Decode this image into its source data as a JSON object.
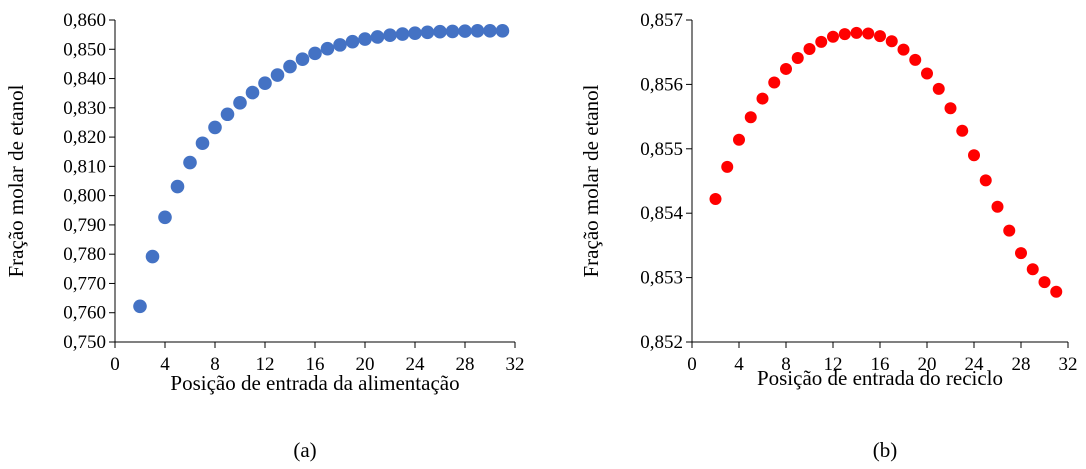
{
  "chart_data": [
    {
      "type": "scatter",
      "xlabel": "Posição de entrada da alimentação",
      "ylabel": "Fração molar de etanol",
      "caption": "(a)",
      "color": "#4472C4",
      "xlim": [
        0,
        32
      ],
      "ylim": [
        0.75,
        0.86
      ],
      "xticks": [
        0,
        4,
        8,
        12,
        16,
        20,
        24,
        28,
        32
      ],
      "yticks": [
        0.75,
        0.76,
        0.77,
        0.78,
        0.79,
        0.8,
        0.81,
        0.82,
        0.83,
        0.84,
        0.85,
        0.86
      ],
      "x_tick_labels": [
        "0",
        "4",
        "8",
        "12",
        "16",
        "20",
        "24",
        "28",
        "32"
      ],
      "y_tick_labels": [
        "0,750",
        "0,760",
        "0,770",
        "0,780",
        "0,790",
        "0,800",
        "0,810",
        "0,820",
        "0,830",
        "0,840",
        "0,850",
        "0,860"
      ],
      "x": [
        2,
        3,
        4,
        5,
        6,
        7,
        8,
        9,
        10,
        11,
        12,
        13,
        14,
        15,
        16,
        17,
        18,
        19,
        20,
        21,
        22,
        23,
        24,
        25,
        26,
        27,
        28,
        29,
        30,
        31
      ],
      "y": [
        0.7622,
        0.7792,
        0.7926,
        0.8031,
        0.8113,
        0.8179,
        0.8233,
        0.8278,
        0.8317,
        0.8352,
        0.8384,
        0.8412,
        0.8441,
        0.8466,
        0.8486,
        0.8502,
        0.8515,
        0.8526,
        0.8535,
        0.8542,
        0.8548,
        0.8552,
        0.8555,
        0.8558,
        0.856,
        0.8561,
        0.8562,
        0.8563,
        0.8563,
        0.8563
      ]
    },
    {
      "type": "scatter",
      "xlabel": "Posição de entrada do reciclo",
      "ylabel": "Fração molar de etanol",
      "caption": "(b)",
      "color": "#FF0000",
      "xlim": [
        0,
        32
      ],
      "ylim": [
        0.852,
        0.857
      ],
      "xticks": [
        0,
        4,
        8,
        12,
        16,
        20,
        24,
        28,
        32
      ],
      "yticks": [
        0.852,
        0.853,
        0.854,
        0.855,
        0.856,
        0.857
      ],
      "x_tick_labels": [
        "0",
        "4",
        "8",
        "12",
        "16",
        "20",
        "24",
        "28",
        "32"
      ],
      "y_tick_labels": [
        "0,852",
        "0,853",
        "0,854",
        "0,855",
        "0,856",
        "0,857"
      ],
      "x": [
        2,
        3,
        4,
        5,
        6,
        7,
        8,
        9,
        10,
        11,
        12,
        13,
        14,
        15,
        16,
        17,
        18,
        19,
        20,
        21,
        22,
        23,
        24,
        25,
        26,
        27,
        28,
        29,
        30,
        31
      ],
      "y": [
        0.85422,
        0.85472,
        0.85514,
        0.85549,
        0.85578,
        0.85603,
        0.85624,
        0.85641,
        0.85655,
        0.85666,
        0.85674,
        0.85678,
        0.8568,
        0.85679,
        0.85675,
        0.85667,
        0.85654,
        0.85638,
        0.85617,
        0.85593,
        0.85563,
        0.85528,
        0.8549,
        0.85451,
        0.8541,
        0.85373,
        0.85338,
        0.85313,
        0.85293,
        0.85278
      ]
    }
  ]
}
